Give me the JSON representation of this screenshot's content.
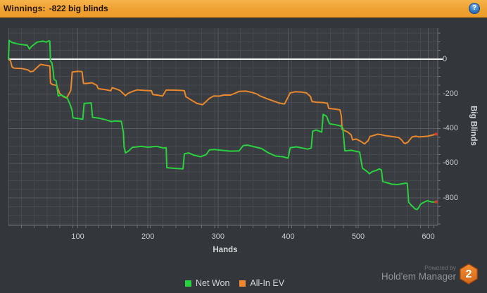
{
  "header": {
    "label": "Winnings:",
    "value": "-822 big blinds",
    "help_icon_glyph": "?"
  },
  "chart_data": {
    "type": "line",
    "title": "Winnings: -822 big blinds",
    "xlabel": "Hands",
    "ylabel": "Big Blinds",
    "xlim": [
      0,
      613
    ],
    "ylim": [
      -960,
      180
    ],
    "x_ticks": [
      100,
      200,
      300,
      400,
      500,
      600
    ],
    "y_ticks": [
      0,
      -200,
      -400,
      -600,
      -800
    ],
    "grid": true,
    "zero_line": true,
    "legend_position": "bottom",
    "end_marker_color": "#d93a28",
    "series": [
      {
        "name": "All-In EV",
        "color": "#e8872b",
        "points": [
          [
            1,
            0
          ],
          [
            4,
            -10
          ],
          [
            6,
            -44
          ],
          [
            9,
            -52
          ],
          [
            20,
            -54
          ],
          [
            29,
            -62
          ],
          [
            32,
            -72
          ],
          [
            36,
            -70
          ],
          [
            45,
            -36
          ],
          [
            47,
            -30
          ],
          [
            52,
            -34
          ],
          [
            58,
            -38
          ],
          [
            60,
            -40
          ],
          [
            61,
            -138
          ],
          [
            64,
            -146
          ],
          [
            70,
            -152
          ],
          [
            74,
            -196
          ],
          [
            79,
            -216
          ],
          [
            84,
            -224
          ],
          [
            90,
            -180
          ],
          [
            92,
            -74
          ],
          [
            100,
            -70
          ],
          [
            106,
            -72
          ],
          [
            108,
            -140
          ],
          [
            112,
            -140
          ],
          [
            120,
            -136
          ],
          [
            127,
            -150
          ],
          [
            129,
            -170
          ],
          [
            140,
            -176
          ],
          [
            147,
            -182
          ],
          [
            149,
            -164
          ],
          [
            155,
            -172
          ],
          [
            160,
            -180
          ],
          [
            168,
            -210
          ],
          [
            172,
            -196
          ],
          [
            179,
            -184
          ],
          [
            185,
            -177
          ],
          [
            195,
            -180
          ],
          [
            205,
            -182
          ],
          [
            207,
            -204
          ],
          [
            215,
            -208
          ],
          [
            221,
            -212
          ],
          [
            226,
            -178
          ],
          [
            235,
            -178
          ],
          [
            248,
            -180
          ],
          [
            252,
            -182
          ],
          [
            254,
            -216
          ],
          [
            262,
            -236
          ],
          [
            270,
            -255
          ],
          [
            278,
            -262
          ],
          [
            288,
            -225
          ],
          [
            294,
            -212
          ],
          [
            302,
            -213
          ],
          [
            308,
            -207
          ],
          [
            318,
            -207
          ],
          [
            330,
            -186
          ],
          [
            340,
            -184
          ],
          [
            349,
            -192
          ],
          [
            355,
            -200
          ],
          [
            360,
            -212
          ],
          [
            370,
            -228
          ],
          [
            385,
            -250
          ],
          [
            391,
            -256
          ],
          [
            395,
            -258
          ],
          [
            403,
            -194
          ],
          [
            410,
            -188
          ],
          [
            420,
            -190
          ],
          [
            426,
            -194
          ],
          [
            429,
            -205
          ],
          [
            432,
            -216
          ],
          [
            434,
            -244
          ],
          [
            440,
            -248
          ],
          [
            450,
            -250
          ],
          [
            456,
            -254
          ],
          [
            458,
            -284
          ],
          [
            468,
            -288
          ],
          [
            474,
            -292
          ],
          [
            476,
            -330
          ],
          [
            477,
            -404
          ],
          [
            480,
            -410
          ],
          [
            485,
            -420
          ],
          [
            490,
            -436
          ],
          [
            492,
            -465
          ],
          [
            497,
            -460
          ],
          [
            503,
            -472
          ],
          [
            509,
            -488
          ],
          [
            514,
            -470
          ],
          [
            517,
            -445
          ],
          [
            523,
            -438
          ],
          [
            528,
            -432
          ],
          [
            532,
            -434
          ],
          [
            538,
            -440
          ],
          [
            545,
            -444
          ],
          [
            552,
            -448
          ],
          [
            558,
            -452
          ],
          [
            562,
            -466
          ],
          [
            565,
            -482
          ],
          [
            567,
            -486
          ],
          [
            571,
            -478
          ],
          [
            574,
            -462
          ],
          [
            577,
            -448
          ],
          [
            582,
            -444
          ],
          [
            587,
            -448
          ],
          [
            593,
            -446
          ],
          [
            599,
            -444
          ],
          [
            605,
            -438
          ],
          [
            611,
            -432
          ]
        ]
      },
      {
        "name": "Net Won",
        "color": "#2ad13e",
        "points": [
          [
            1,
            0
          ],
          [
            2,
            108
          ],
          [
            6,
            96
          ],
          [
            10,
            92
          ],
          [
            14,
            88
          ],
          [
            20,
            84
          ],
          [
            28,
            80
          ],
          [
            31,
            58
          ],
          [
            34,
            74
          ],
          [
            42,
            98
          ],
          [
            50,
            104
          ],
          [
            55,
            98
          ],
          [
            59,
            106
          ],
          [
            60,
            104
          ],
          [
            61,
            -12
          ],
          [
            63,
            -20
          ],
          [
            65,
            -70
          ],
          [
            66,
            -116
          ],
          [
            69,
            -124
          ],
          [
            71,
            -180
          ],
          [
            72,
            -212
          ],
          [
            76,
            -206
          ],
          [
            80,
            -214
          ],
          [
            85,
            -224
          ],
          [
            88,
            -252
          ],
          [
            90,
            -272
          ],
          [
            92,
            -300
          ],
          [
            93,
            -338
          ],
          [
            100,
            -342
          ],
          [
            107,
            -346
          ],
          [
            109,
            -255
          ],
          [
            119,
            -252
          ],
          [
            121,
            -335
          ],
          [
            130,
            -340
          ],
          [
            139,
            -348
          ],
          [
            148,
            -360
          ],
          [
            152,
            -356
          ],
          [
            162,
            -358
          ],
          [
            165,
            -420
          ],
          [
            166,
            -505
          ],
          [
            168,
            -540
          ],
          [
            172,
            -530
          ],
          [
            178,
            -508
          ],
          [
            190,
            -502
          ],
          [
            200,
            -507
          ],
          [
            212,
            -502
          ],
          [
            222,
            -512
          ],
          [
            226,
            -510
          ],
          [
            227,
            -625
          ],
          [
            235,
            -628
          ],
          [
            250,
            -632
          ],
          [
            252,
            -545
          ],
          [
            258,
            -540
          ],
          [
            265,
            -552
          ],
          [
            275,
            -562
          ],
          [
            283,
            -550
          ],
          [
            288,
            -522
          ],
          [
            295,
            -520
          ],
          [
            305,
            -525
          ],
          [
            318,
            -530
          ],
          [
            330,
            -528
          ],
          [
            336,
            -498
          ],
          [
            342,
            -495
          ],
          [
            352,
            -505
          ],
          [
            362,
            -515
          ],
          [
            372,
            -540
          ],
          [
            382,
            -558
          ],
          [
            392,
            -562
          ],
          [
            400,
            -570
          ],
          [
            403,
            -510
          ],
          [
            412,
            -505
          ],
          [
            420,
            -512
          ],
          [
            428,
            -518
          ],
          [
            433,
            -512
          ],
          [
            435,
            -415
          ],
          [
            440,
            -408
          ],
          [
            448,
            -420
          ],
          [
            450,
            -318
          ],
          [
            455,
            -330
          ],
          [
            459,
            -372
          ],
          [
            468,
            -378
          ],
          [
            475,
            -385
          ],
          [
            478,
            -398
          ],
          [
            481,
            -528
          ],
          [
            490,
            -525
          ],
          [
            502,
            -535
          ],
          [
            506,
            -628
          ],
          [
            512,
            -645
          ],
          [
            516,
            -660
          ],
          [
            520,
            -648
          ],
          [
            526,
            -640
          ],
          [
            530,
            -632
          ],
          [
            533,
            -638
          ],
          [
            535,
            -705
          ],
          [
            540,
            -710
          ],
          [
            548,
            -720
          ],
          [
            556,
            -722
          ],
          [
            562,
            -718
          ],
          [
            568,
            -714
          ],
          [
            570,
            -716
          ],
          [
            572,
            -824
          ],
          [
            575,
            -838
          ],
          [
            578,
            -850
          ],
          [
            581,
            -862
          ],
          [
            584,
            -866
          ],
          [
            586,
            -856
          ],
          [
            589,
            -836
          ],
          [
            592,
            -828
          ],
          [
            596,
            -820
          ],
          [
            599,
            -815
          ],
          [
            602,
            -820
          ],
          [
            606,
            -823
          ],
          [
            611,
            -822
          ]
        ]
      }
    ]
  },
  "legend": {
    "items": [
      {
        "label": "Net Won",
        "color": "#2ad13e"
      },
      {
        "label": "All-In EV",
        "color": "#f08a30"
      }
    ]
  },
  "footer": {
    "powered_by": "Powered by",
    "brand": "Hold'em Manager",
    "badge": "2"
  },
  "colors": {
    "header_bg": "#efa232",
    "window_bg": "#33363a",
    "plot_bg": "#393c40",
    "grid_minor": "#46494d",
    "grid_major": "#55585c",
    "axis_border": "#6d7175",
    "zero_line": "#f5f5f5",
    "tick_text": "#c9cbcd"
  }
}
